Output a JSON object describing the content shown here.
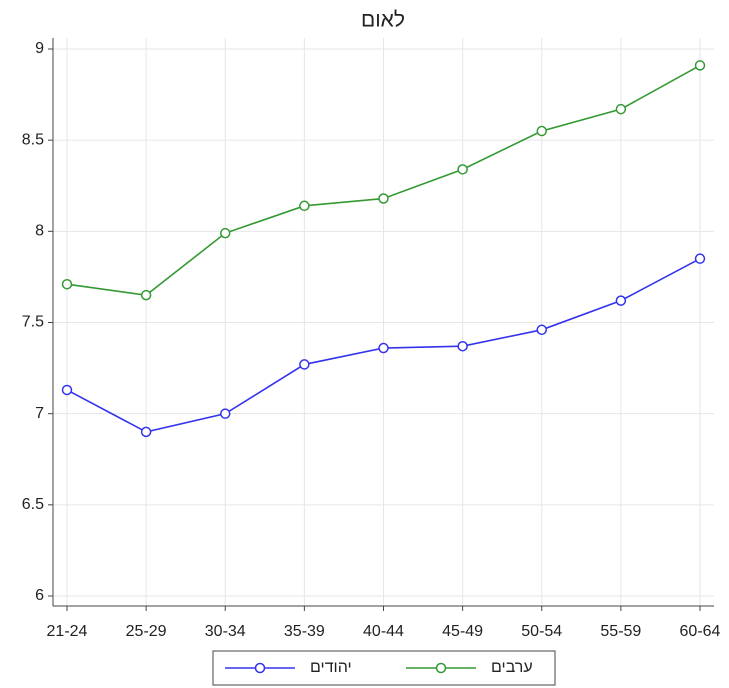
{
  "chart_data": {
    "type": "line",
    "title": "לאום",
    "categories": [
      "21-24",
      "25-29",
      "30-34",
      "35-39",
      "40-44",
      "45-49",
      "50-54",
      "55-59",
      "60-64"
    ],
    "series": [
      {
        "name": "יהודים",
        "color": "#3333ee",
        "values": [
          7.13,
          6.9,
          7.0,
          7.27,
          7.36,
          7.37,
          7.46,
          7.62,
          7.85
        ]
      },
      {
        "name": "ערבים",
        "color": "#339933",
        "values": [
          7.71,
          7.65,
          7.99,
          8.14,
          8.18,
          8.34,
          8.55,
          8.67,
          8.91
        ]
      }
    ],
    "ylim": [
      6,
      9
    ],
    "yticks": [
      6,
      6.5,
      7,
      7.5,
      8,
      8.5,
      9
    ],
    "grid": true
  }
}
